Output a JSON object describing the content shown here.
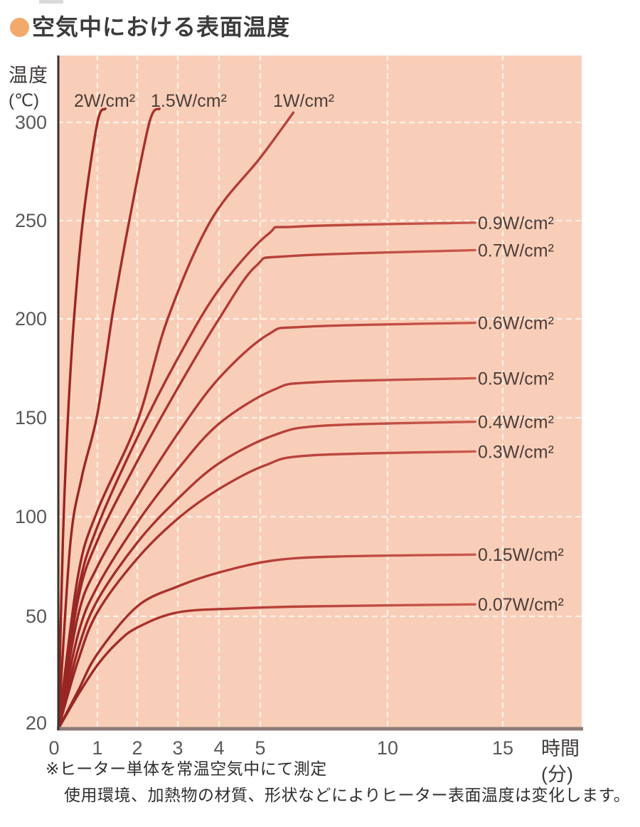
{
  "page": {
    "title": "空気中における表面温度"
  },
  "chart_data": {
    "type": "line",
    "title": "空気中における表面温度",
    "xlabel": "時間",
    "xlabel_unit": "(分)",
    "ylabel": "温度",
    "ylabel_unit": "(℃)",
    "x_ticks": [
      0,
      1,
      2,
      3,
      4,
      5,
      10,
      15
    ],
    "y_ticks": [
      20,
      50,
      100,
      150,
      200,
      250,
      300
    ],
    "x_range": [
      0,
      16
    ],
    "y_range": [
      20,
      310
    ],
    "grid": "white dashed on salmon background",
    "legend_position": "inline curve labels",
    "series": [
      {
        "name": "2W/cm²",
        "label_side": "top",
        "points": [
          [
            0,
            20
          ],
          [
            0.12,
            90
          ],
          [
            0.25,
            152
          ],
          [
            0.42,
            205
          ],
          [
            0.64,
            252
          ],
          [
            1.0,
            300
          ],
          [
            1.2,
            307
          ]
        ]
      },
      {
        "name": "1.5W/cm²",
        "label_side": "top",
        "points": [
          [
            0,
            20
          ],
          [
            0.3,
            85
          ],
          [
            0.6,
            120
          ],
          [
            1.0,
            152
          ],
          [
            1.4,
            205
          ],
          [
            1.8,
            250
          ],
          [
            2.3,
            300
          ],
          [
            2.55,
            307
          ]
        ]
      },
      {
        "name": "1W/cm²",
        "label_side": "top",
        "points": [
          [
            0,
            20
          ],
          [
            0.5,
            70
          ],
          [
            1.0,
            103
          ],
          [
            2.0,
            148
          ],
          [
            2.75,
            200
          ],
          [
            3.8,
            250
          ],
          [
            5.0,
            282
          ],
          [
            6.3,
            305
          ]
        ]
      },
      {
        "name": "0.9W/cm²",
        "label_side": "right",
        "saturation_temp_c": 249,
        "points": [
          [
            0,
            20
          ],
          [
            0.5,
            62
          ],
          [
            1.0,
            95
          ],
          [
            2.0,
            140
          ],
          [
            3.0,
            180
          ],
          [
            4.0,
            215
          ],
          [
            5.3,
            243
          ],
          [
            6.5,
            247
          ],
          [
            13.8,
            249
          ]
        ]
      },
      {
        "name": "0.7W/cm²",
        "label_side": "right",
        "saturation_temp_c": 235,
        "points": [
          [
            0,
            20
          ],
          [
            0.5,
            58
          ],
          [
            1.0,
            88
          ],
          [
            2.0,
            128
          ],
          [
            3.0,
            165
          ],
          [
            4.0,
            200
          ],
          [
            4.9,
            227
          ],
          [
            6.2,
            232
          ],
          [
            13.8,
            235
          ]
        ]
      },
      {
        "name": "0.6W/cm²",
        "label_side": "right",
        "saturation_temp_c": 198,
        "points": [
          [
            0,
            20
          ],
          [
            0.5,
            50
          ],
          [
            1.0,
            75
          ],
          [
            2.0,
            110
          ],
          [
            3.0,
            142
          ],
          [
            4.0,
            170
          ],
          [
            5.3,
            192
          ],
          [
            6.8,
            196
          ],
          [
            13.8,
            198
          ]
        ]
      },
      {
        "name": "0.5W/cm²",
        "label_side": "right",
        "saturation_temp_c": 170,
        "points": [
          [
            0,
            20
          ],
          [
            0.5,
            45
          ],
          [
            1.0,
            65
          ],
          [
            2.0,
            97
          ],
          [
            3.0,
            124
          ],
          [
            4.0,
            147
          ],
          [
            5.5,
            164
          ],
          [
            7.2,
            168
          ],
          [
            13.8,
            170
          ]
        ]
      },
      {
        "name": "0.4W/cm²",
        "label_side": "right",
        "saturation_temp_c": 148,
        "points": [
          [
            0,
            20
          ],
          [
            0.5,
            41
          ],
          [
            1.0,
            58
          ],
          [
            2.0,
            87
          ],
          [
            3.0,
            109
          ],
          [
            4.0,
            127
          ],
          [
            5.5,
            141
          ],
          [
            7.5,
            146
          ],
          [
            13.8,
            148
          ]
        ]
      },
      {
        "name": "0.3W/cm²",
        "label_side": "right",
        "saturation_temp_c": 133,
        "points": [
          [
            0,
            20
          ],
          [
            0.5,
            38
          ],
          [
            1.0,
            52
          ],
          [
            2.0,
            79
          ],
          [
            3.0,
            99
          ],
          [
            4.0,
            114
          ],
          [
            5.2,
            126
          ],
          [
            7.0,
            131
          ],
          [
            13.8,
            133
          ]
        ]
      },
      {
        "name": "0.15W/cm²",
        "label_side": "right",
        "saturation_temp_c": 81,
        "points": [
          [
            0,
            20
          ],
          [
            0.5,
            30
          ],
          [
            1.0,
            40
          ],
          [
            2.0,
            55
          ],
          [
            3.0,
            65
          ],
          [
            4.0,
            72
          ],
          [
            5.5,
            78
          ],
          [
            8.0,
            80
          ],
          [
            13.8,
            81
          ]
        ]
      },
      {
        "name": "0.07W/cm²",
        "label_side": "right",
        "saturation_temp_c": 56,
        "points": [
          [
            0,
            20
          ],
          [
            0.5,
            29
          ],
          [
            1.0,
            37
          ],
          [
            1.5,
            43
          ],
          [
            2.0,
            47
          ],
          [
            3.0,
            52
          ],
          [
            4.5,
            54
          ],
          [
            7.0,
            55
          ],
          [
            13.8,
            56
          ]
        ]
      }
    ]
  },
  "footnotes": [
    "※ヒーター単体を常温空気中にて測定",
    "使用環境、加熱物の材質、形状などによりヒーター表面温度は変化します。"
  ],
  "colors": {
    "plot_bg": "#f9ceb9",
    "curve_dark": "#972521",
    "curve_mid": "#ae362f",
    "curve_light": "#ca5a50",
    "grid": "#fff4ea",
    "accent_bullet": "#f3a96b",
    "axis": "#3a3132",
    "baseline": "#8d7b78",
    "tick_text": "#5a5856",
    "label_text": "#4b3e39"
  }
}
